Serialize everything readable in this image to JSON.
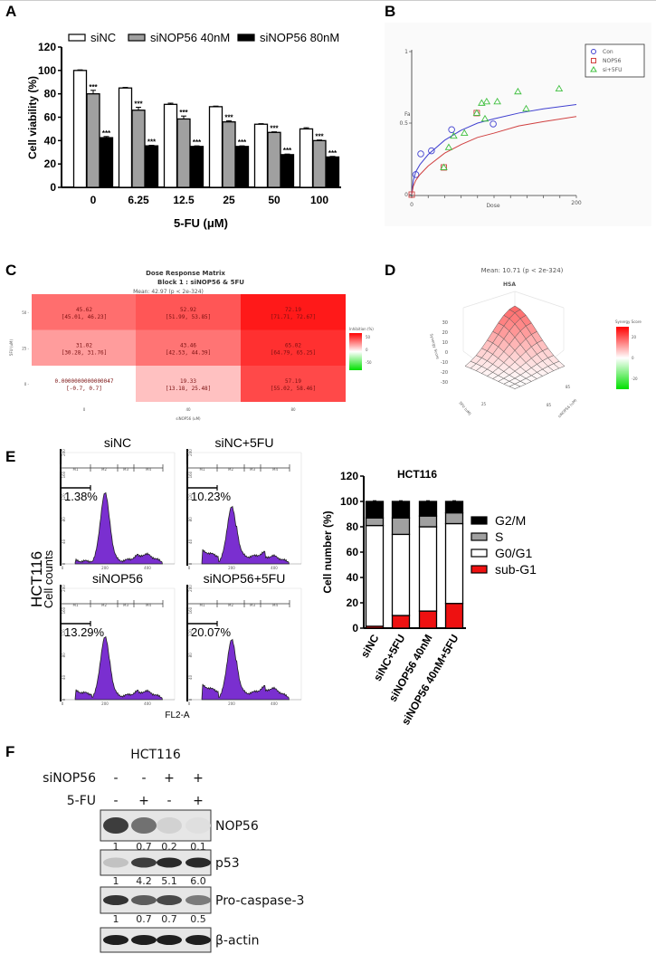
{
  "panel_labels": {
    "A": "A",
    "B": "B",
    "C": "C",
    "D": "D",
    "E": "E",
    "F": "F"
  },
  "chart_data": [
    {
      "id": "A",
      "type": "bar",
      "xlabel": "5-FU (μM)",
      "ylabel": "Cell viability (%)",
      "ylim": [
        0,
        120
      ],
      "yticks": [
        "0",
        "20",
        "40",
        "60",
        "80",
        "100",
        "120"
      ],
      "categories": [
        "0",
        "6.25",
        "12.5",
        "25",
        "50",
        "100"
      ],
      "legend_position": "top",
      "significance_label": "***",
      "series": [
        {
          "name": "siNC",
          "color": "#ffffff",
          "values": [
            100,
            85,
            71,
            69,
            54,
            50
          ],
          "errors": [
            0.5,
            0.5,
            1,
            0.5,
            0.5,
            1
          ],
          "significant": false
        },
        {
          "name": "siNOP56 40nM",
          "color": "#a0a0a0",
          "values": [
            80,
            66,
            58.5,
            56,
            47,
            40
          ],
          "errors": [
            3,
            2.5,
            2.5,
            1,
            0.5,
            0.5
          ],
          "significant": true
        },
        {
          "name": "siNOP56 80nM",
          "color": "#000000",
          "values": [
            42.5,
            35.5,
            35,
            35,
            28,
            26
          ],
          "errors": [
            1,
            0.5,
            0.5,
            0.5,
            0.5,
            0.5
          ],
          "significant": true
        }
      ]
    },
    {
      "id": "B",
      "type": "scatter",
      "xlabel": "Dose",
      "ylabel": "Fa",
      "xlim": [
        0,
        200
      ],
      "ylim": [
        0,
        1
      ],
      "xticks": [
        "0",
        "200"
      ],
      "yticks": [
        "0",
        "0.5",
        "1"
      ],
      "legend_position": "top-right",
      "series": [
        {
          "name": "Con",
          "marker": "circle",
          "color": "#4040d0",
          "points": [
            [
              5,
              0.14
            ],
            [
              11,
              0.285
            ],
            [
              24,
              0.306
            ],
            [
              48.5,
              0.454
            ],
            [
              99,
              0.494
            ]
          ],
          "fit": [
            [
              0,
              0
            ],
            [
              2,
              0.1
            ],
            [
              5,
              0.16
            ],
            [
              10,
              0.21
            ],
            [
              20,
              0.28
            ],
            [
              40,
              0.38
            ],
            [
              60,
              0.45
            ],
            [
              80,
              0.5
            ],
            [
              100,
              0.53
            ],
            [
              130,
              0.57
            ],
            [
              160,
              0.6
            ],
            [
              200,
              0.63
            ]
          ]
        },
        {
          "name": "NOP56",
          "marker": "square",
          "color": "#d04040",
          "points": [
            [
              0,
              0
            ],
            [
              39,
              0.19
            ],
            [
              79,
              0.57
            ]
          ],
          "fit": [
            [
              0,
              0
            ],
            [
              2,
              0.06
            ],
            [
              5,
              0.1
            ],
            [
              10,
              0.14
            ],
            [
              20,
              0.2
            ],
            [
              40,
              0.29
            ],
            [
              60,
              0.35
            ],
            [
              80,
              0.4
            ],
            [
              100,
              0.43
            ],
            [
              130,
              0.48
            ],
            [
              160,
              0.51
            ],
            [
              200,
              0.546
            ]
          ]
        },
        {
          "name": "si+5FU",
          "marker": "triangle",
          "color": "#40c040",
          "points": [
            [
              39,
              0.19
            ],
            [
              45,
              0.33
            ],
            [
              51,
              0.41
            ],
            [
              64,
              0.43
            ],
            [
              79,
              0.57
            ],
            [
              85,
              0.64
            ],
            [
              89,
              0.53
            ],
            [
              91,
              0.65
            ],
            [
              104,
              0.65
            ],
            [
              129,
              0.72
            ],
            [
              139,
              0.6
            ],
            [
              179,
              0.74
            ]
          ]
        }
      ]
    },
    {
      "id": "C",
      "type": "heatmap",
      "title": "Dose Response Matrix",
      "subtitle": "Block 1 : siNOP56 & 5FU",
      "mean_text": "Mean: 42.97 (p < 2e-324)",
      "xlabel": "siNOP56 (uM)",
      "ylabel": "5FU (uM)",
      "x_categories": [
        "0",
        "40",
        "80"
      ],
      "y_categories": [
        "50",
        "25",
        "0"
      ],
      "colorbar_title": "Inhibition (%)",
      "colorbar_ticks": [
        "50",
        "0",
        "-50"
      ],
      "colors": {
        "high": "#ff0000",
        "mid": "#ffffff",
        "low": "#00e000"
      },
      "rows": [
        [
          {
            "value": 45.62,
            "text": "45.62",
            "ci": "[45.01, 46.23]"
          },
          {
            "value": 52.92,
            "text": "52.92",
            "ci": "[51.99, 53.85]"
          },
          {
            "value": 72.19,
            "text": "72.19",
            "ci": "[71.71, 72.67]"
          }
        ],
        [
          {
            "value": 31.02,
            "text": "31.02",
            "ci": "[30.28, 31.76]"
          },
          {
            "value": 43.46,
            "text": "43.46",
            "ci": "[42.53, 44.39]"
          },
          {
            "value": 65.02,
            "text": "65.02",
            "ci": "[64.79, 65.25]"
          }
        ],
        [
          {
            "value": 0,
            "text": "0.0000000000000047",
            "ci": "[-0.7, 0.7]"
          },
          {
            "value": 19.33,
            "text": "19.33",
            "ci": "[13.18, 25.48]"
          },
          {
            "value": 57.19,
            "text": "57.19",
            "ci": "[55.02, 58.46]"
          }
        ]
      ]
    },
    {
      "id": "D",
      "type": "surface",
      "title": "HSA",
      "mean_text": "Mean: 10.71 (p < 2e-324)",
      "zlabel": "Synergy Score",
      "zticks": [
        "30",
        "20",
        "10",
        "0",
        "-10",
        "-20",
        "-30"
      ],
      "xlabel": "5FU (uM)",
      "ylabel": "siNOP56 (uM)",
      "axis_tick_x": "25",
      "axis_ticks_y": [
        "85",
        "85"
      ],
      "colorbar_title": "Synergy Score",
      "colorbar_ticks": [
        "20",
        "0",
        "-20"
      ]
    },
    {
      "id": "E-histograms",
      "type": "histogram",
      "xlabel": "FL2-A",
      "ylabel": "Cell counts",
      "row_label": "HCT116",
      "fill_color": "#7a2fd0",
      "xticks": [
        "0",
        "200",
        "400"
      ],
      "yticks": [
        "0",
        "40",
        "80",
        "120",
        "160",
        "200"
      ],
      "gates": [
        "M1",
        "M2",
        "M3",
        "M4"
      ],
      "panels": [
        {
          "title": "siNC",
          "sub_g1_percent": "1.38%"
        },
        {
          "title": "siNC+5FU",
          "sub_g1_percent": "10.23%"
        },
        {
          "title": "siNOP56",
          "sub_g1_percent": "13.29%"
        },
        {
          "title": "siNOP56+5FU",
          "sub_g1_percent": "20.07%"
        }
      ]
    },
    {
      "id": "E-stacked",
      "type": "bar",
      "stacked": true,
      "title": "HCT116",
      "ylabel": "Cell number (%)",
      "ylim": [
        0,
        120
      ],
      "yticks": [
        "0",
        "20",
        "40",
        "60",
        "80",
        "100",
        "120"
      ],
      "categories": [
        "siNC",
        "siNC+5FU",
        "siNOP56 40nM",
        "siNOP56 40nM+5FU"
      ],
      "legend_position": "right",
      "series": [
        {
          "name": "sub-G1",
          "color": "#ee1111",
          "values": [
            1.5,
            10,
            13.5,
            19.5
          ]
        },
        {
          "name": "G0/G1",
          "color": "#ffffff",
          "values": [
            79.5,
            64,
            66.5,
            63
          ]
        },
        {
          "name": "S",
          "color": "#a0a0a0",
          "values": [
            6,
            13,
            8.5,
            8.5
          ]
        },
        {
          "name": "G2/M",
          "color": "#000000",
          "values": [
            13,
            13,
            11.5,
            9
          ]
        }
      ]
    },
    {
      "id": "F",
      "type": "table",
      "title": "HCT116",
      "conditions": [
        {
          "label": "siNOP56",
          "signs": [
            "-",
            "-",
            "+",
            "+"
          ]
        },
        {
          "label": "5-FU",
          "signs": [
            "-",
            "+",
            "-",
            "+"
          ]
        }
      ],
      "blots": [
        {
          "name": "NOP56",
          "quantification": [
            "1",
            "0.7",
            "0.2",
            "0.1"
          ],
          "intensity": [
            0.85,
            0.6,
            0.12,
            0.06
          ]
        },
        {
          "name": "p53",
          "quantification": [
            "1",
            "4.2",
            "5.1",
            "6.0"
          ],
          "intensity": [
            0.2,
            0.85,
            0.95,
            0.95
          ]
        },
        {
          "name": "Pro-caspase-3",
          "quantification": [
            "1",
            "0.7",
            "0.7",
            "0.5"
          ],
          "intensity": [
            0.9,
            0.7,
            0.8,
            0.55
          ]
        },
        {
          "name": "β-actin",
          "quantification": [],
          "intensity": [
            1,
            1,
            1,
            1
          ]
        }
      ]
    }
  ]
}
